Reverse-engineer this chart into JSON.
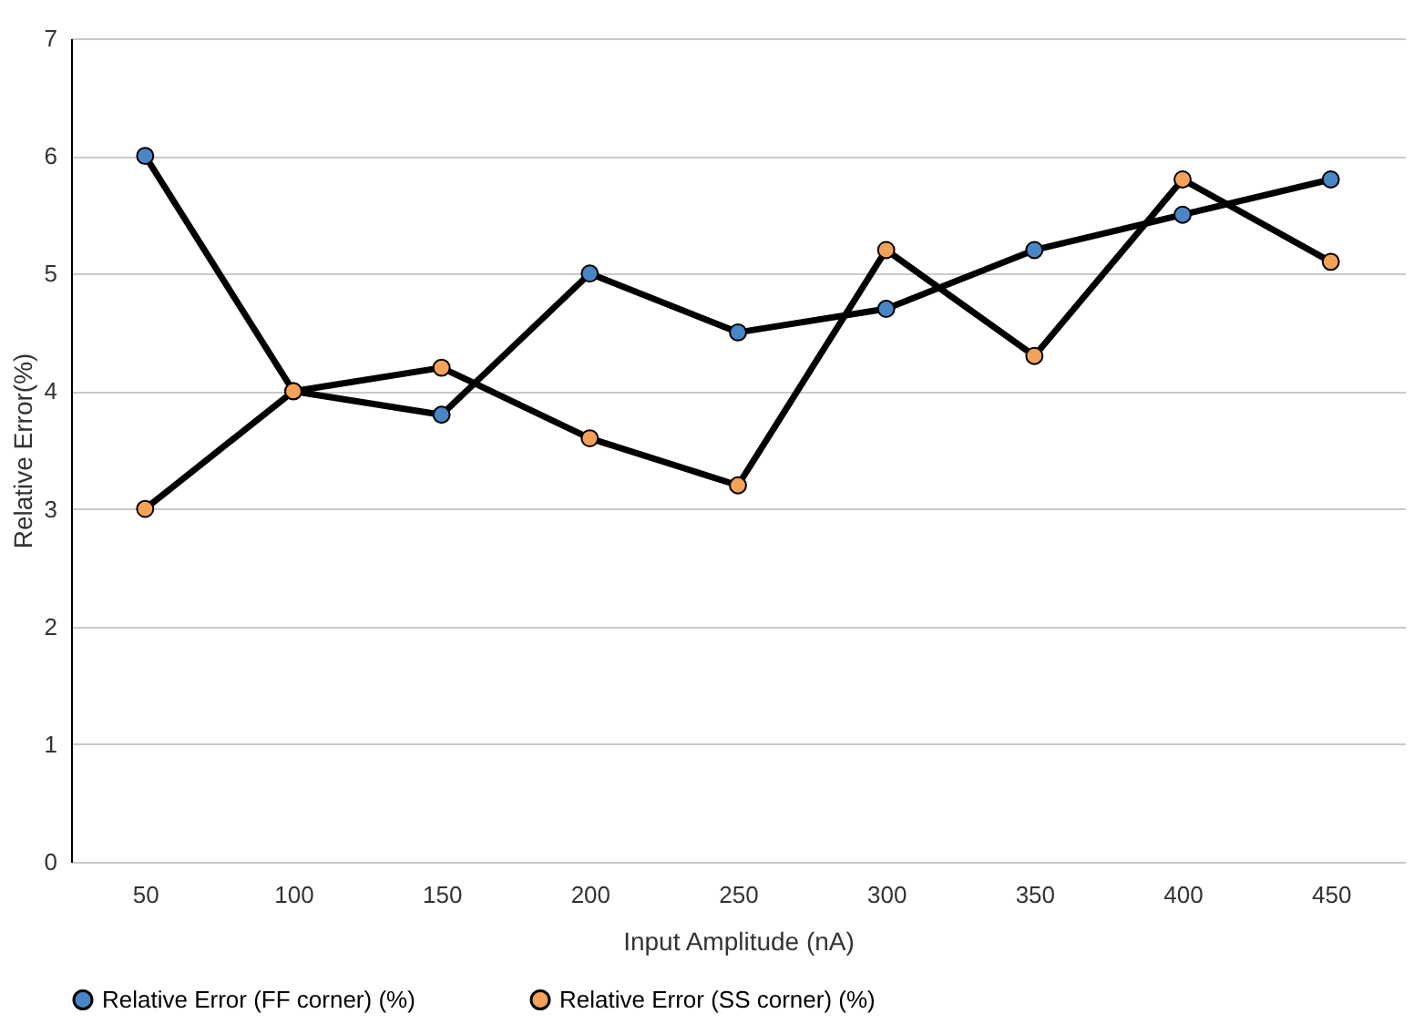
{
  "chart_data": {
    "type": "line",
    "xlabel": "Input Amplitude (nA)",
    "ylabel": "Relative Error(%)",
    "categories": [
      "50",
      "100",
      "150",
      "200",
      "250",
      "300",
      "350",
      "400",
      "450"
    ],
    "series": [
      {
        "name": "Relative Error (FF corner) (%)",
        "color": "#4a86c5",
        "values": [
          6,
          4,
          3.8,
          5,
          4.5,
          4.7,
          5.2,
          5.5,
          5.8
        ]
      },
      {
        "name": "Relative Error (SS corner) (%)",
        "color": "#f4a259",
        "values": [
          3,
          4,
          4.2,
          3.6,
          3.2,
          5.2,
          4.3,
          5.8,
          5.1
        ]
      }
    ],
    "ylim": [
      0,
      7
    ],
    "yticks": [
      0,
      1,
      2,
      3,
      4,
      5,
      6,
      7
    ],
    "grid": "y",
    "legend": "bottom",
    "marker": "circle",
    "line_style": "solid"
  }
}
